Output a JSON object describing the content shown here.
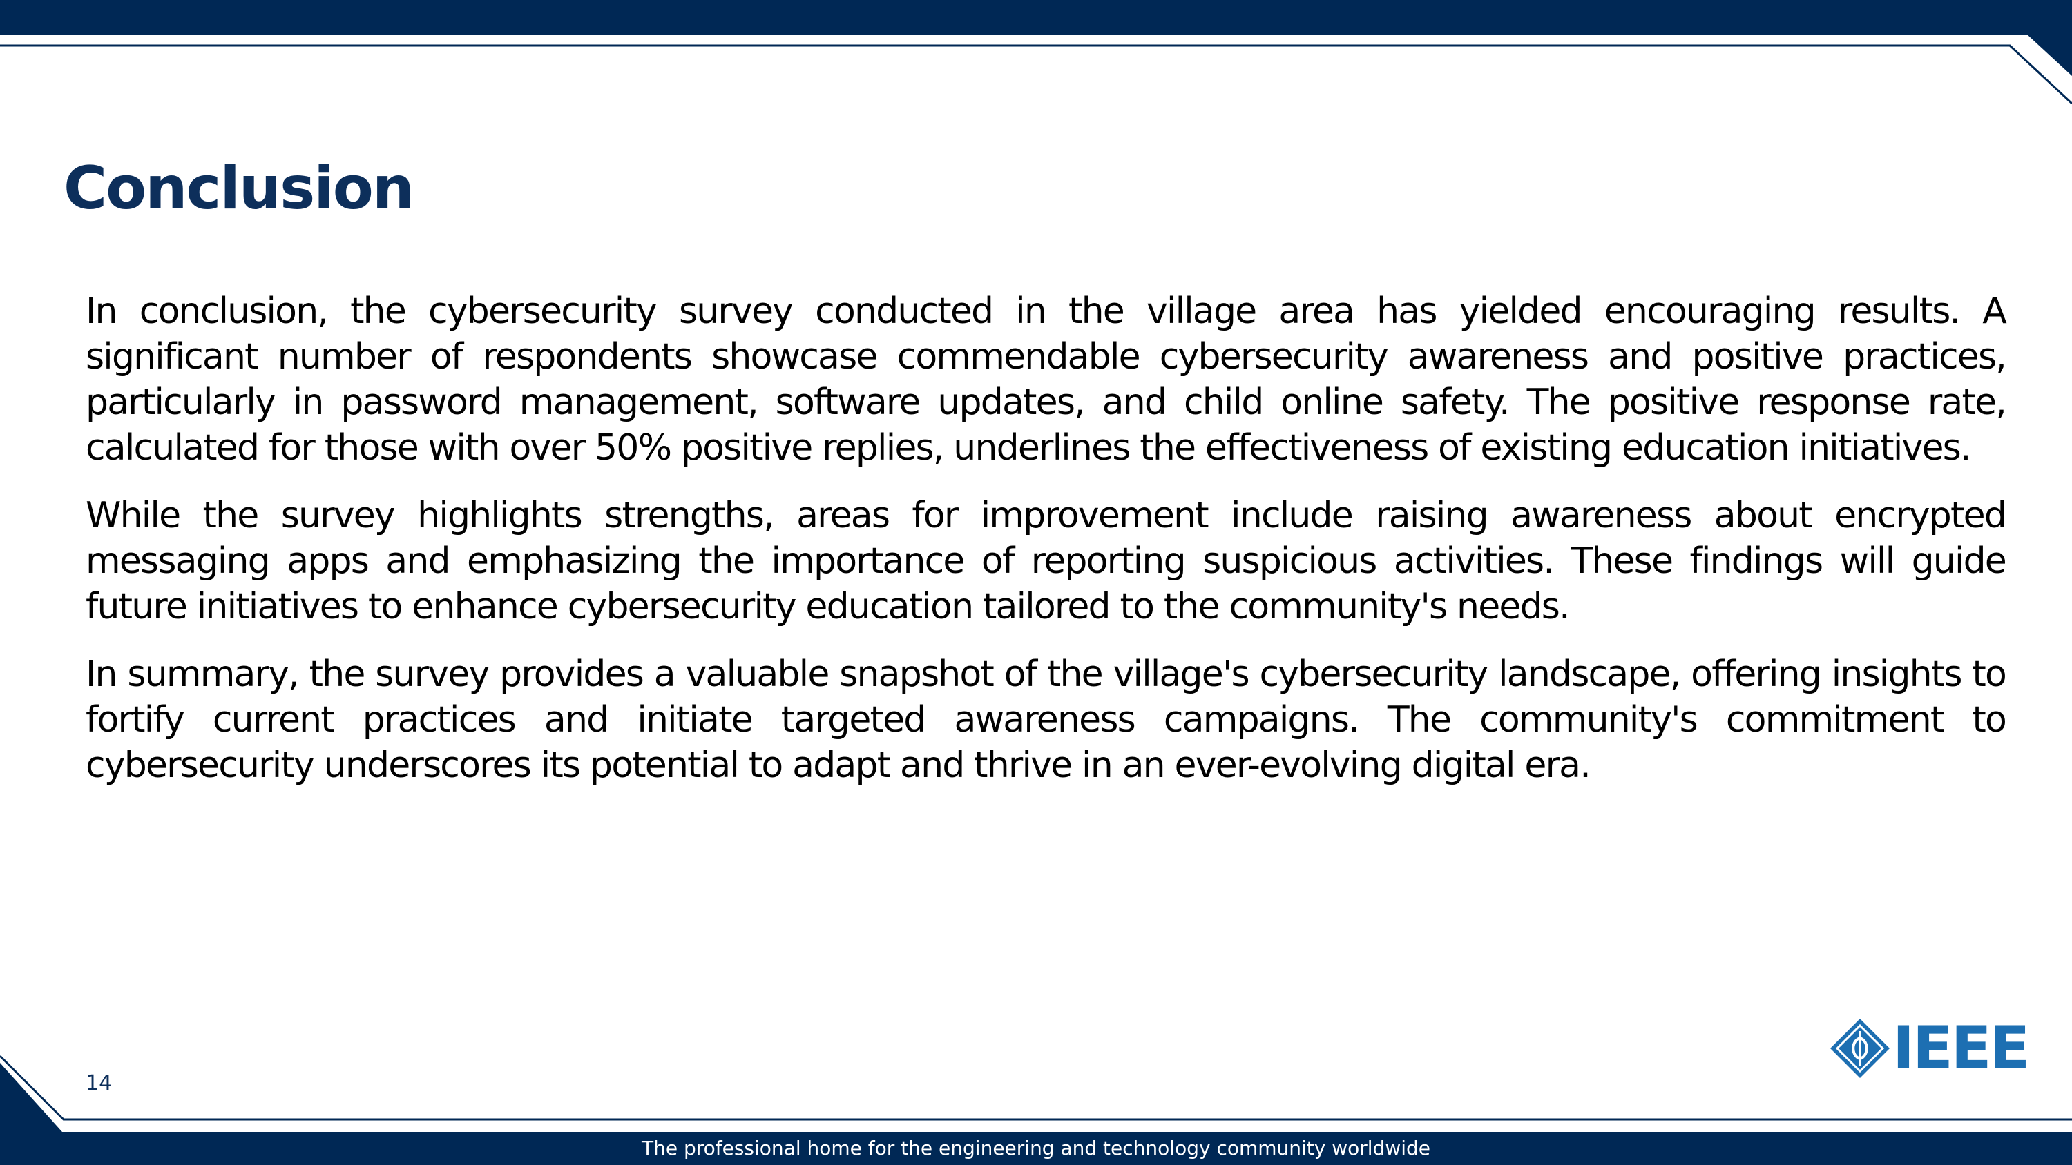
{
  "slide": {
    "title": "Conclusion",
    "paragraphs": [
      "In conclusion, the cybersecurity survey conducted in the village area has yielded encouraging results. A significant number of respondents showcase commendable cybersecurity awareness and positive practices, particularly in password management, software updates, and child online safety. The positive response rate, calculated for those with over 50% positive replies, underlines the effectiveness of existing education initiatives.",
      "While the survey highlights strengths, areas for improvement include raising awareness about encrypted messaging apps and emphasizing the importance of reporting suspicious activities. These findings will guide future initiatives to enhance cybersecurity education tailored to the community's needs.",
      "In summary, the survey provides a valuable snapshot of the village's cybersecurity landscape, offering insights to fortify current practices and initiate targeted awareness campaigns. The community's commitment to cybersecurity underscores its potential to adapt and thrive in an ever-evolving digital era."
    ],
    "page_number": "14"
  },
  "branding": {
    "logo_text": "IEEE",
    "logo_icon": "ieee-kite-icon",
    "tagline": "The professional home for the engineering and technology community worldwide"
  },
  "colors": {
    "navy": "#002855",
    "title": "#0d2f5b",
    "logo_blue": "#1d6fb2",
    "body_text": "#000000",
    "background": "#ffffff"
  }
}
